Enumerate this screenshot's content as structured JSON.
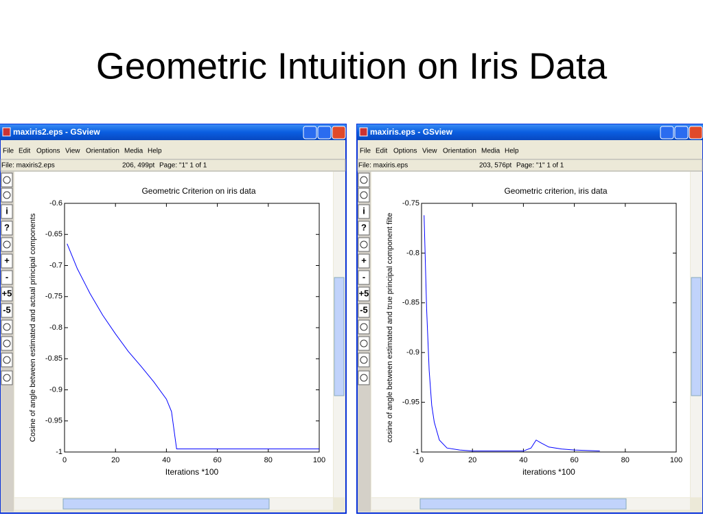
{
  "title": "Geometric Intuition on Iris Data",
  "windows": [
    {
      "title": "maxiris2.eps - GSview",
      "menu": [
        "File",
        "Edit",
        "Options",
        "View",
        "Orientation",
        "Media",
        "Help"
      ],
      "status": {
        "file": "File: maxiris2.eps",
        "coords": "206, 499pt",
        "page": "Page: \"1\"  1 of 1"
      },
      "toolbar": [
        "i",
        "?",
        "+",
        "-",
        "+5",
        "-5"
      ]
    },
    {
      "title": "maxiris.eps - GSview",
      "menu": [
        "File",
        "Edit",
        "Options",
        "View",
        "Orientation",
        "Media",
        "Help"
      ],
      "status": {
        "file": "File: maxiris.eps",
        "coords": "203, 576pt",
        "page": "Page: \"1\"  1 of 1"
      },
      "toolbar": [
        "i",
        "?",
        "+",
        "-",
        "+5",
        "-5"
      ]
    }
  ],
  "chart_data": [
    {
      "type": "line",
      "title": "Geometric Criterion on iris data",
      "xlabel": "Iterations *100",
      "ylabel": "Cosine of angle between estimated and actual principal components",
      "x": [
        1,
        5,
        10,
        15,
        20,
        25,
        30,
        35,
        40,
        42,
        44,
        46,
        50,
        60,
        70,
        80,
        90,
        100
      ],
      "values": [
        -0.665,
        -0.705,
        -0.745,
        -0.78,
        -0.81,
        -0.838,
        -0.862,
        -0.887,
        -0.915,
        -0.935,
        -0.995,
        -0.995,
        -0.995,
        -0.995,
        -0.995,
        -0.995,
        -0.995,
        -0.995
      ],
      "color": "#0000ff",
      "xlim": [
        0,
        100
      ],
      "ylim": [
        -1,
        -0.6
      ],
      "xticks": [
        0,
        20,
        40,
        60,
        80,
        100
      ],
      "yticks": [
        -0.6,
        -0.65,
        -0.7,
        -0.75,
        -0.8,
        -0.85,
        -0.9,
        -0.95,
        -1
      ],
      "grid": false
    },
    {
      "type": "line",
      "title": "Geometric criterion, iris data",
      "xlabel": "iterations *100",
      "ylabel": "cosine of angle between estimated and true principal component filte",
      "x": [
        1,
        2,
        3,
        4,
        5,
        7,
        10,
        15,
        20,
        30,
        40,
        43,
        44,
        45,
        47,
        50,
        55,
        60,
        70
      ],
      "values": [
        -0.762,
        -0.856,
        -0.918,
        -0.953,
        -0.97,
        -0.988,
        -0.996,
        -0.998,
        -0.999,
        -0.999,
        -0.999,
        -0.996,
        -0.992,
        -0.988,
        -0.991,
        -0.995,
        -0.997,
        -0.998,
        -0.999
      ],
      "color": "#0000ff",
      "xlim": [
        0,
        100
      ],
      "ylim": [
        -1,
        -0.75
      ],
      "xticks": [
        0,
        20,
        40,
        60,
        80,
        100
      ],
      "yticks": [
        -0.75,
        -0.8,
        -0.85,
        -0.9,
        -0.95,
        -1
      ],
      "grid": false
    }
  ]
}
